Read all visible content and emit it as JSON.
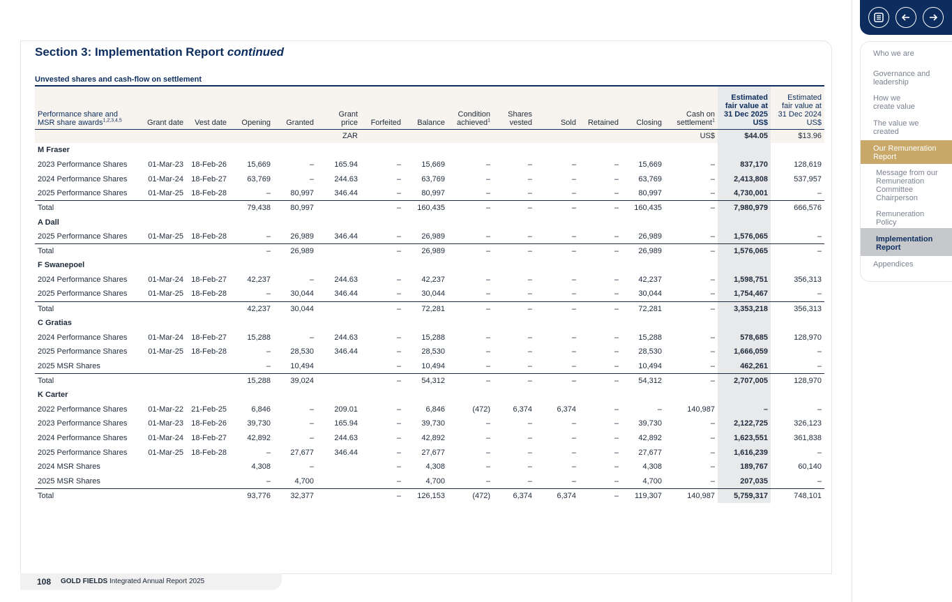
{
  "section": {
    "title": "Section 3: Implementation Report ",
    "title_italic": "continued"
  },
  "table": {
    "caption": "Unvested shares and cash-flow on settlement",
    "headers": {
      "award": [
        "Performance share and",
        "MSR share awards"
      ],
      "award_sup": "1,2,3,4,5",
      "grant_date": "Grant date",
      "vest_date": "Vest date",
      "opening": "Opening",
      "granted": "Granted",
      "grant_price": [
        "Grant",
        "price"
      ],
      "forfeited": "Forfeited",
      "balance": "Balance",
      "condition": [
        "Condition",
        "achieved"
      ],
      "condition_sup": "1",
      "shares_vested": [
        "Shares",
        "vested"
      ],
      "sold": "Sold",
      "retained": "Retained",
      "closing": "Closing",
      "cash": [
        "Cash on",
        "settlement"
      ],
      "cash_sup": "1",
      "fv2025": [
        "Estimated",
        "fair value at",
        "31 Dec 2025",
        "US$"
      ],
      "fv2024": [
        "Estimated",
        "fair value at",
        "31 Dec 2024",
        "US$"
      ]
    },
    "units": {
      "grant_price": "ZAR",
      "cash": "US$",
      "fv2025": "$44.05",
      "fv2024": "$13.96"
    },
    "groups": [
      {
        "name": "M Fraser",
        "rows": [
          [
            "2023 Performance Shares",
            "01-Mar-23",
            "18-Feb-26",
            "15,669",
            "–",
            "165.94",
            "–",
            "15,669",
            "–",
            "–",
            "–",
            "–",
            "15,669",
            "–",
            "837,170",
            "128,619"
          ],
          [
            "2024 Performance Shares",
            "01-Mar-24",
            "18-Feb-27",
            "63,769",
            "–",
            "244.63",
            "–",
            "63,769",
            "–",
            "–",
            "–",
            "–",
            "63,769",
            "–",
            "2,413,808",
            "537,957"
          ],
          [
            "2025 Performance Shares",
            "01-Mar-25",
            "18-Feb-28",
            "–",
            "80,997",
            "346.44",
            "–",
            "80,997",
            "–",
            "–",
            "–",
            "–",
            "80,997",
            "–",
            "4,730,001",
            "–"
          ]
        ],
        "total": [
          "Total",
          "",
          "",
          "79,438",
          "80,997",
          "",
          "–",
          "160,435",
          "–",
          "–",
          "–",
          "–",
          "160,435",
          "–",
          "7,980,979",
          "666,576"
        ]
      },
      {
        "name": "A Dall",
        "rows": [
          [
            "2025 Performance Shares",
            "01-Mar-25",
            "18-Feb-28",
            "–",
            "26,989",
            "346.44",
            "–",
            "26,989",
            "–",
            "–",
            "–",
            "–",
            "26,989",
            "–",
            "1,576,065",
            "–"
          ]
        ],
        "total": [
          "Total",
          "",
          "",
          "–",
          "26,989",
          "",
          "–",
          "26,989",
          "–",
          "–",
          "–",
          "–",
          "26,989",
          "–",
          "1,576,065",
          "–"
        ]
      },
      {
        "name": "F Swanepoel",
        "rows": [
          [
            "2024 Performance Shares",
            "01-Mar-24",
            "18-Feb-27",
            "42,237",
            "–",
            "244.63",
            "–",
            "42,237",
            "–",
            "–",
            "–",
            "–",
            "42,237",
            "–",
            "1,598,751",
            "356,313"
          ],
          [
            "2025 Performance Shares",
            "01-Mar-25",
            "18-Feb-28",
            "–",
            "30,044",
            "346.44",
            "–",
            "30,044",
            "–",
            "–",
            "–",
            "–",
            "30,044",
            "–",
            "1,754,467",
            "–"
          ]
        ],
        "total": [
          "Total",
          "",
          "",
          "42,237",
          "30,044",
          "",
          "–",
          "72,281",
          "–",
          "–",
          "–",
          "–",
          "72,281",
          "–",
          "3,353,218",
          "356,313"
        ]
      },
      {
        "name": "C Gratias",
        "rows": [
          [
            "2024 Performance Shares",
            "01-Mar-24",
            "18-Feb-27",
            "15,288",
            "–",
            "244.63",
            "–",
            "15,288",
            "–",
            "–",
            "–",
            "–",
            "15,288",
            "–",
            "578,685",
            "128,970"
          ],
          [
            "2025 Performance Shares",
            "01-Mar-25",
            "18-Feb-28",
            "–",
            "28,530",
            "346.44",
            "–",
            "28,530",
            "–",
            "–",
            "–",
            "–",
            "28,530",
            "–",
            "1,666,059",
            "–"
          ],
          [
            "2025 MSR Shares",
            "",
            "",
            "–",
            "10,494",
            "",
            "–",
            "10,494",
            "–",
            "–",
            "–",
            "–",
            "10,494",
            "–",
            "462,261",
            "–"
          ]
        ],
        "total": [
          "Total",
          "",
          "",
          "15,288",
          "39,024",
          "",
          "–",
          "54,312",
          "–",
          "–",
          "–",
          "–",
          "54,312",
          "–",
          "2,707,005",
          "128,970"
        ]
      },
      {
        "name": "K Carter",
        "rows": [
          [
            "2022 Performance Shares",
            "01-Mar-22",
            "21-Feb-25",
            "6,846",
            "–",
            "209.01",
            "–",
            "6,846",
            "(472)",
            "6,374",
            "6,374",
            "–",
            "–",
            "140,987",
            "–",
            "–"
          ],
          [
            "2023 Performance Shares",
            "01-Mar-23",
            "18-Feb-26",
            "39,730",
            "–",
            "165.94",
            "–",
            "39,730",
            "–",
            "–",
            "–",
            "–",
            "39,730",
            "–",
            "2,122,725",
            "326,123"
          ],
          [
            "2024 Performance Shares",
            "01-Mar-24",
            "18-Feb-27",
            "42,892",
            "–",
            "244.63",
            "–",
            "42,892",
            "–",
            "–",
            "–",
            "–",
            "42,892",
            "–",
            "1,623,551",
            "361,838"
          ],
          [
            "2025 Performance Shares",
            "01-Mar-25",
            "18-Feb-28",
            "–",
            "27,677",
            "346.44",
            "–",
            "27,677",
            "–",
            "–",
            "–",
            "–",
            "27,677",
            "–",
            "1,616,239",
            "–"
          ],
          [
            "2024 MSR Shares",
            "",
            "",
            "4,308",
            "–",
            "",
            "–",
            "4,308",
            "–",
            "–",
            "–",
            "–",
            "4,308",
            "–",
            "189,767",
            "60,140"
          ],
          [
            "2025 MSR Shares",
            "",
            "",
            "–",
            "4,700",
            "",
            "–",
            "4,700",
            "–",
            "–",
            "–",
            "–",
            "4,700",
            "–",
            "207,035",
            "–"
          ]
        ],
        "total": [
          "Total",
          "",
          "",
          "93,776",
          "32,377",
          "",
          "–",
          "126,153",
          "(472)",
          "6,374",
          "6,374",
          "–",
          "119,307",
          "140,987",
          "5,759,317",
          "748,101"
        ]
      }
    ]
  },
  "footer": {
    "page": "108",
    "brand": "GOLD FIELDS",
    "report": " Integrated Annual Report 2025"
  },
  "nav": {
    "buttons": {
      "contents": "contents-icon",
      "back": "arrow-left-icon",
      "forward": "arrow-right-icon"
    },
    "items": [
      "Who we are",
      "Governance and leadership",
      "How we create value",
      "The value we created",
      "Our Remuneration Report",
      "Message from our Remuneration Committee Chairperson",
      "Remuneration Policy",
      "Implementation Report",
      "Appendices"
    ]
  },
  "colors": {
    "navy": "#0c2d5e",
    "gold": "#c8a96a",
    "highlight": "#e8e9eb",
    "header_bg": "#f7f3ee"
  }
}
